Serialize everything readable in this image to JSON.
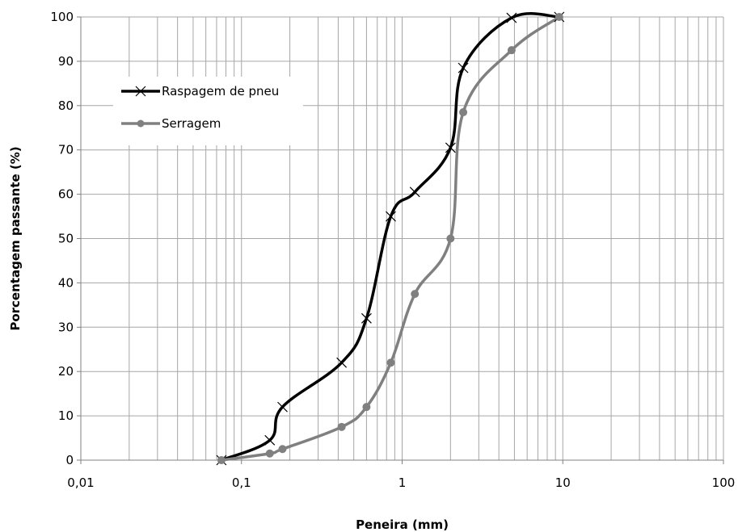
{
  "chart_data": {
    "type": "line",
    "xlabel": "Peneira (mm)",
    "ylabel": "Porcentagem passante (%)",
    "x_scale": "log",
    "xlim": [
      0.01,
      100
    ],
    "ylim": [
      0,
      100
    ],
    "x_ticks": [
      0.01,
      0.1,
      1,
      10,
      100
    ],
    "x_tick_labels": [
      "0,01",
      "0,1",
      "1",
      "10",
      "100"
    ],
    "y_ticks": [
      0,
      10,
      20,
      30,
      40,
      50,
      60,
      70,
      80,
      90,
      100
    ],
    "y_tick_labels": [
      "0",
      "10",
      "20",
      "30",
      "40",
      "50",
      "60",
      "70",
      "80",
      "90",
      "100"
    ],
    "grid": true,
    "legend_position": "top-left",
    "series": [
      {
        "name": "Raspagem de pneu",
        "marker": "x",
        "color": "#000000",
        "x": [
          0.075,
          0.15,
          0.18,
          0.42,
          0.6,
          0.85,
          1.2,
          2.0,
          2.4,
          4.8,
          9.5
        ],
        "y": [
          0,
          4.5,
          12,
          22,
          32,
          55,
          60.5,
          70.5,
          88.5,
          99.8,
          100
        ]
      },
      {
        "name": "Serragem",
        "marker": "circle",
        "color": "#808080",
        "x": [
          0.075,
          0.15,
          0.18,
          0.42,
          0.6,
          0.85,
          1.2,
          2.0,
          2.4,
          4.8,
          9.5
        ],
        "y": [
          0,
          1.5,
          2.5,
          7.5,
          12,
          22,
          37.5,
          50,
          78.5,
          92.5,
          100
        ]
      }
    ]
  }
}
